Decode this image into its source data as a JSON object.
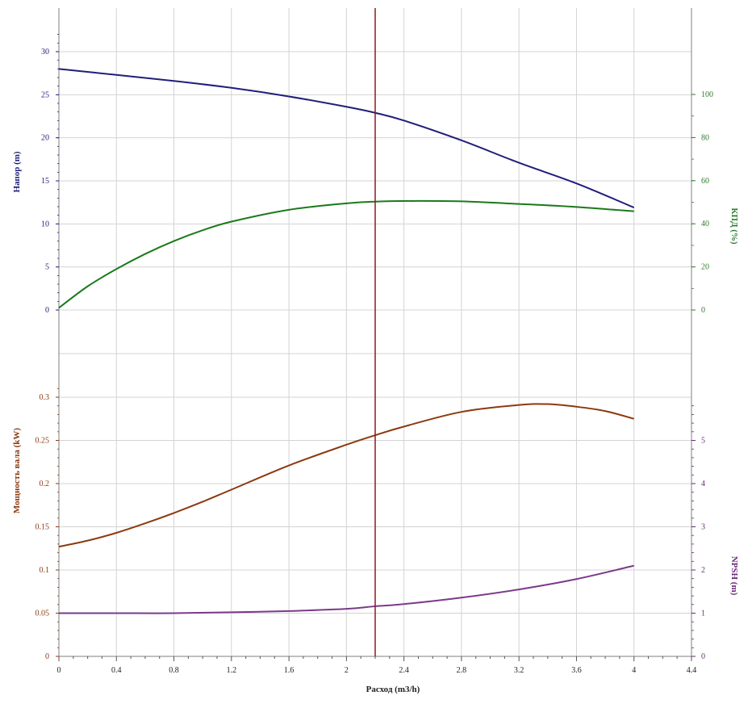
{
  "chart_data": {
    "type": "line",
    "xlabel": "Расход (m3/h)",
    "x_ticks": [
      "0",
      "0.4",
      "0.8",
      "1.2",
      "1.6",
      "2",
      "2.4",
      "2.8",
      "3.2",
      "3.6",
      "4",
      "4.4"
    ],
    "xlim": [
      0,
      4.4
    ],
    "grid": true,
    "operating_point_x": 2.2,
    "top_panel": {
      "left_axis": {
        "label": "Напор (m)",
        "ticks": [
          "0",
          "5",
          "10",
          "15",
          "20",
          "25",
          "30"
        ],
        "ylim": [
          0,
          30
        ],
        "color": "#1f1f7a"
      },
      "right_axis": {
        "label": "КПД (%)",
        "ticks": [
          "0",
          "20",
          "40",
          "60",
          "80",
          "100"
        ],
        "ylim": [
          0,
          100
        ],
        "color": "#2e7d32"
      },
      "series": [
        {
          "axis": "left",
          "color": "#1f1f7a",
          "points": [
            [
              0,
              28
            ],
            [
              0.4,
              27.3
            ],
            [
              0.8,
              26.6
            ],
            [
              1.2,
              25.8
            ],
            [
              1.6,
              24.8
            ],
            [
              2.0,
              23.6
            ],
            [
              2.2,
              22.9
            ],
            [
              2.4,
              22.0
            ],
            [
              2.8,
              19.7
            ],
            [
              3.2,
              17.1
            ],
            [
              3.6,
              14.7
            ],
            [
              4.0,
              11.9
            ]
          ]
        },
        {
          "axis": "right",
          "color": "#1b7a1b",
          "points": [
            [
              0,
              1
            ],
            [
              0.2,
              11
            ],
            [
              0.4,
              19
            ],
            [
              0.6,
              26
            ],
            [
              0.8,
              32
            ],
            [
              1.0,
              37
            ],
            [
              1.2,
              41
            ],
            [
              1.6,
              46.5
            ],
            [
              2.0,
              49.5
            ],
            [
              2.2,
              50.3
            ],
            [
              2.5,
              50.6
            ],
            [
              2.8,
              50.4
            ],
            [
              3.2,
              49.2
            ],
            [
              3.6,
              47.8
            ],
            [
              4.0,
              45.8
            ]
          ]
        }
      ]
    },
    "bottom_panel": {
      "left_axis": {
        "label": "Мощность вала (kW)",
        "ticks": [
          "0",
          "0.05",
          "0.1",
          "0.15",
          "0.2",
          "0.25",
          "0.3"
        ],
        "ylim": [
          0,
          0.3
        ],
        "color": "#8b3a0f"
      },
      "right_axis": {
        "label": "NPSH (m)",
        "ticks": [
          "0",
          "1",
          "2",
          "3",
          "4",
          "5"
        ],
        "ylim": [
          0,
          6
        ],
        "color": "#6a2a7a"
      },
      "series": [
        {
          "axis": "left",
          "color": "#8b3a0f",
          "points": [
            [
              0,
              0.127
            ],
            [
              0.2,
              0.134
            ],
            [
              0.4,
              0.143
            ],
            [
              0.6,
              0.154
            ],
            [
              0.8,
              0.166
            ],
            [
              1.0,
              0.179
            ],
            [
              1.2,
              0.193
            ],
            [
              1.6,
              0.221
            ],
            [
              2.0,
              0.245
            ],
            [
              2.2,
              0.256
            ],
            [
              2.4,
              0.266
            ],
            [
              2.8,
              0.283
            ],
            [
              3.2,
              0.291
            ],
            [
              3.4,
              0.292
            ],
            [
              3.6,
              0.289
            ],
            [
              3.8,
              0.284
            ],
            [
              4.0,
              0.275
            ]
          ]
        },
        {
          "axis": "right",
          "color": "#7b3a8a",
          "points": [
            [
              0,
              1.0
            ],
            [
              0.4,
              1.0
            ],
            [
              0.8,
              1.0
            ],
            [
              1.2,
              1.02
            ],
            [
              1.6,
              1.05
            ],
            [
              2.0,
              1.1
            ],
            [
              2.2,
              1.16
            ],
            [
              2.4,
              1.21
            ],
            [
              2.8,
              1.36
            ],
            [
              3.2,
              1.55
            ],
            [
              3.6,
              1.79
            ],
            [
              4.0,
              2.1
            ]
          ]
        }
      ]
    }
  }
}
